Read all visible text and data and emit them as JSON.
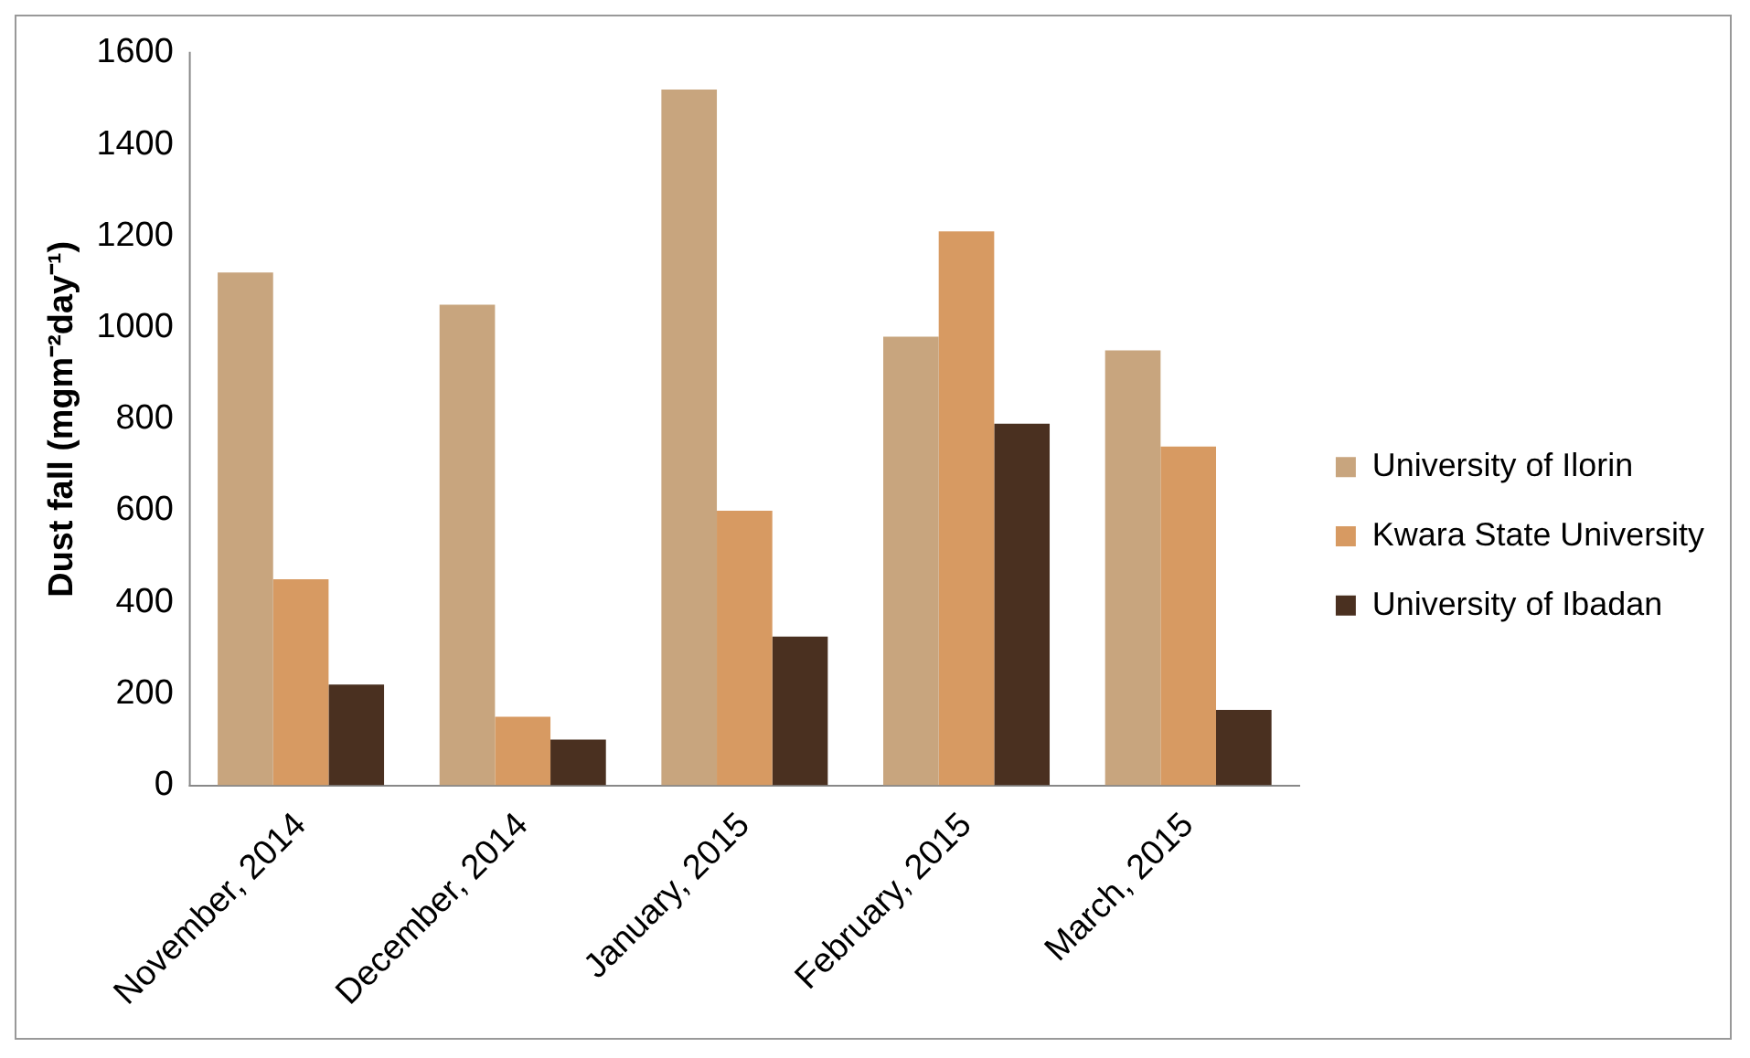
{
  "chart_data": {
    "type": "bar",
    "ylabel": "Dust fall (mgm⁻²day⁻¹)",
    "categories": [
      "November, 2014",
      "December, 2014",
      "January, 2015",
      "February, 2015",
      "March, 2015"
    ],
    "series": [
      {
        "name": "University of Ilorin",
        "color": "#c8a57e",
        "values": [
          1120,
          1050,
          1520,
          980,
          950
        ]
      },
      {
        "name": "Kwara State University",
        "color": "#d79a62",
        "values": [
          450,
          150,
          600,
          1210,
          740
        ]
      },
      {
        "name": "University of Ibadan",
        "color": "#4a3020",
        "values": [
          220,
          100,
          325,
          790,
          165
        ]
      }
    ],
    "ylim": [
      0,
      1600
    ],
    "yticks": [
      0,
      200,
      400,
      600,
      800,
      1000,
      1200,
      1400,
      1600
    ],
    "grid": false,
    "legend": "right"
  }
}
